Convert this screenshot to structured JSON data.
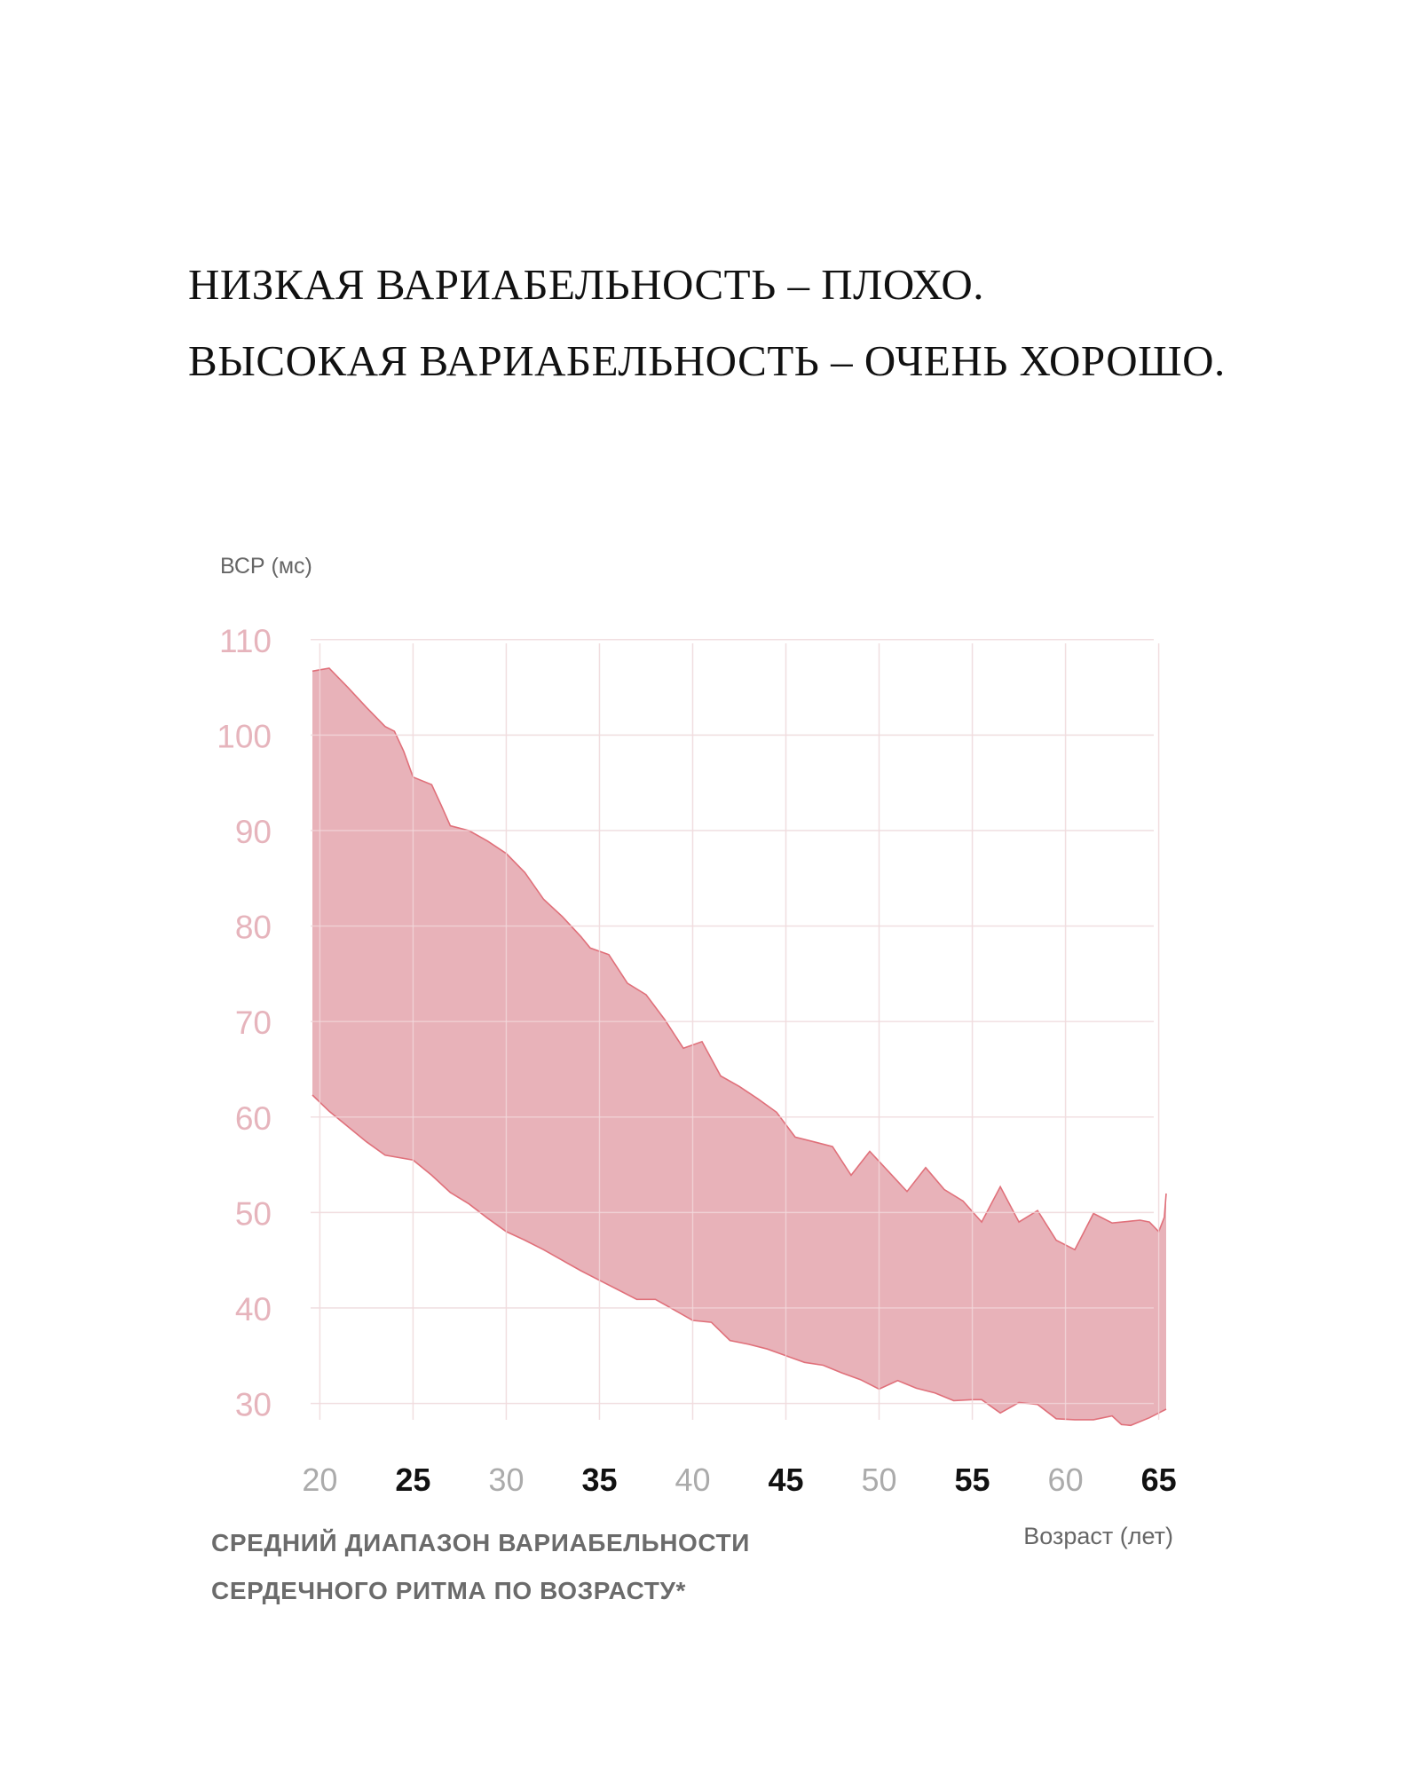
{
  "headline": {
    "line1": "НИЗКАЯ ВАРИАБЕЛЬНОСТЬ – ПЛОХО.",
    "line2": "ВЫСОКАЯ ВАРИАБЕЛЬНОСТЬ – ОЧЕНЬ ХОРОШО."
  },
  "caption": {
    "line1": "СРЕДНИЙ ДИАПАЗОН ВАРИАБЕЛЬНОСТИ",
    "line2": "СЕРДЕЧНОГО РИТМА ПО ВОЗРАСТУ*"
  },
  "colors": {
    "band_fill": "#e8b2b9",
    "band_stroke": "#e0707a",
    "y_tick": "#e6b4bc",
    "x_tick_muted": "#ababab",
    "x_tick_strong": "#111111",
    "axis_label": "#666666",
    "grid": "#ececec",
    "grid_over_band": "#f3dadd"
  },
  "chart_data": {
    "type": "area",
    "title": "",
    "xlabel": "Возраст (лет)",
    "ylabel": "ВСР (мс)",
    "xlim": [
      19.6,
      65.4
    ],
    "ylim": [
      25.5,
      111
    ],
    "grid": true,
    "x_ticks": [
      {
        "value": 20,
        "label": "20",
        "emphasis": false
      },
      {
        "value": 25,
        "label": "25",
        "emphasis": true
      },
      {
        "value": 30,
        "label": "30",
        "emphasis": false
      },
      {
        "value": 35,
        "label": "35",
        "emphasis": true
      },
      {
        "value": 40,
        "label": "40",
        "emphasis": false
      },
      {
        "value": 45,
        "label": "45",
        "emphasis": true
      },
      {
        "value": 50,
        "label": "50",
        "emphasis": false
      },
      {
        "value": 55,
        "label": "55",
        "emphasis": true
      },
      {
        "value": 60,
        "label": "60",
        "emphasis": false
      },
      {
        "value": 65,
        "label": "65",
        "emphasis": true
      }
    ],
    "y_ticks": [
      {
        "value": 30,
        "label": "30"
      },
      {
        "value": 40,
        "label": "40"
      },
      {
        "value": 50,
        "label": "50"
      },
      {
        "value": 60,
        "label": "60"
      },
      {
        "value": 70,
        "label": "70"
      },
      {
        "value": 80,
        "label": "80"
      },
      {
        "value": 90,
        "label": "90"
      },
      {
        "value": 100,
        "label": "100"
      },
      {
        "value": 110,
        "label": "110"
      }
    ],
    "band": {
      "upper": [
        [
          19.6,
          106.7
        ],
        [
          20.5,
          107
        ],
        [
          21.5,
          105
        ],
        [
          22.5,
          102.9
        ],
        [
          23.5,
          100.9
        ],
        [
          24,
          100.4
        ],
        [
          24.5,
          98.3
        ],
        [
          25,
          95.6
        ],
        [
          26,
          94.8
        ],
        [
          26.5,
          92.7
        ],
        [
          27,
          90.5
        ],
        [
          28,
          90
        ],
        [
          29,
          88.9
        ],
        [
          30,
          87.6
        ],
        [
          31,
          85.6
        ],
        [
          32,
          82.8
        ],
        [
          33,
          81
        ],
        [
          34,
          78.9
        ],
        [
          34.5,
          77.7
        ],
        [
          35.5,
          77
        ],
        [
          36.5,
          74
        ],
        [
          37.5,
          72.8
        ],
        [
          38.5,
          70.2
        ],
        [
          39.5,
          67.2
        ],
        [
          40.5,
          67.9
        ],
        [
          41.5,
          64.3
        ],
        [
          42.5,
          63.2
        ],
        [
          43.5,
          61.9
        ],
        [
          44.5,
          60.5
        ],
        [
          45.5,
          57.9
        ],
        [
          46.5,
          57.4
        ],
        [
          47.5,
          56.9
        ],
        [
          48.5,
          53.9
        ],
        [
          49.5,
          56.4
        ],
        [
          50.5,
          54.3
        ],
        [
          51.5,
          52.2
        ],
        [
          52.5,
          54.7
        ],
        [
          53.5,
          52.4
        ],
        [
          54.5,
          51.2
        ],
        [
          55.5,
          49
        ],
        [
          56.5,
          52.7
        ],
        [
          57.5,
          49
        ],
        [
          58.5,
          50.2
        ],
        [
          59.5,
          47.1
        ],
        [
          60.5,
          46.1
        ],
        [
          61.5,
          49.9
        ],
        [
          62.5,
          48.9
        ],
        [
          63.5,
          49.1
        ],
        [
          64,
          49.2
        ],
        [
          64.5,
          49
        ],
        [
          65,
          48
        ],
        [
          65.3,
          49.5
        ],
        [
          65.4,
          52
        ]
      ],
      "lower": [
        [
          19.6,
          62.3
        ],
        [
          20.5,
          60.6
        ],
        [
          21.5,
          59
        ],
        [
          22.5,
          57.4
        ],
        [
          23.5,
          56
        ],
        [
          25,
          55.5
        ],
        [
          26,
          53.9
        ],
        [
          27,
          52.1
        ],
        [
          28,
          50.9
        ],
        [
          29,
          49.4
        ],
        [
          30,
          48
        ],
        [
          31,
          47.1
        ],
        [
          32,
          46.1
        ],
        [
          33,
          45
        ],
        [
          34,
          43.9
        ],
        [
          35,
          42.9
        ],
        [
          36,
          41.9
        ],
        [
          37,
          40.9
        ],
        [
          38,
          40.9
        ],
        [
          39,
          39.8
        ],
        [
          40,
          38.7
        ],
        [
          41,
          38.5
        ],
        [
          42,
          36.6
        ],
        [
          43,
          36.2
        ],
        [
          44,
          35.7
        ],
        [
          45,
          35
        ],
        [
          46,
          34.3
        ],
        [
          47,
          34
        ],
        [
          48,
          33.2
        ],
        [
          49,
          32.5
        ],
        [
          50,
          31.5
        ],
        [
          51,
          32.4
        ],
        [
          52,
          31.6
        ],
        [
          53,
          31.1
        ],
        [
          54,
          30.3
        ],
        [
          55,
          30.4
        ],
        [
          55.5,
          30.4
        ],
        [
          56.5,
          29
        ],
        [
          57.5,
          30.1
        ],
        [
          58.5,
          29.9
        ],
        [
          59.5,
          28.4
        ],
        [
          60.5,
          28.3
        ],
        [
          61.5,
          28.3
        ],
        [
          62.5,
          28.7
        ],
        [
          63,
          27.8
        ],
        [
          63.5,
          27.7
        ],
        [
          64.5,
          28.5
        ],
        [
          65,
          29
        ],
        [
          65.4,
          29.4
        ]
      ]
    }
  }
}
